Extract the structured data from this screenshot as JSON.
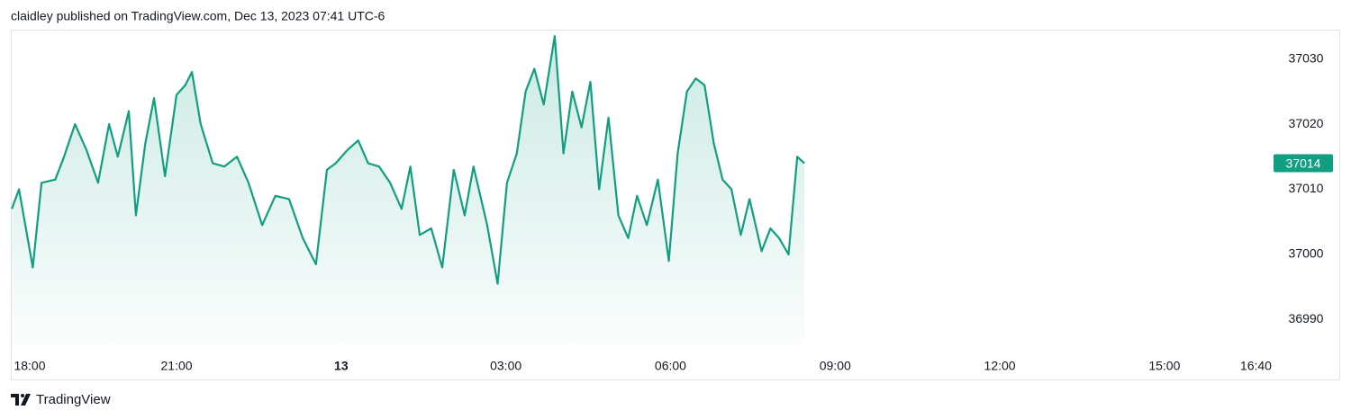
{
  "chart_data": {
    "type": "area",
    "title": "claidley published on TradingView.com, Dec 13, 2023 07:41 UTC-6",
    "brand": "TradingView",
    "color": "#129e80",
    "last_value": 37014,
    "x": [
      18.0,
      18.13,
      18.38,
      18.54,
      18.79,
      18.95,
      19.15,
      19.36,
      19.57,
      19.77,
      19.93,
      20.13,
      20.26,
      20.43,
      20.59,
      20.79,
      21.0,
      21.16,
      21.28,
      21.44,
      21.66,
      21.87,
      22.1,
      22.31,
      22.56,
      22.8,
      23.05,
      23.3,
      23.54,
      23.74,
      23.9,
      24.11,
      24.31,
      24.49,
      24.69,
      24.89,
      25.1,
      25.26,
      25.43,
      25.64,
      25.84,
      26.05,
      26.25,
      26.41,
      26.66,
      26.85,
      27.02,
      27.2,
      27.36,
      27.52,
      27.69,
      27.89,
      28.05,
      28.21,
      28.38,
      28.54,
      28.7,
      28.87,
      29.05,
      29.23,
      29.39,
      29.57,
      29.77,
      29.97,
      30.13,
      30.3,
      30.46,
      30.62,
      30.79,
      30.95,
      31.11,
      31.28,
      31.44,
      31.66,
      31.82,
      31.98,
      32.15,
      32.31,
      32.44
    ],
    "values": [
      37007,
      37010,
      36998,
      37011,
      37011.5,
      37015,
      37020,
      37016,
      37011,
      37020,
      37015,
      37022,
      37006,
      37017,
      37024,
      37012,
      37024.5,
      37026,
      37028,
      37020,
      37014,
      37013.5,
      37015,
      37011,
      37004.5,
      37009,
      37008.5,
      37002.5,
      36998.5,
      37013,
      37014,
      37016,
      37017.5,
      37014,
      37013.5,
      37011,
      37007,
      37013.5,
      37003,
      37004,
      36998,
      37013,
      37006,
      37013.5,
      37004.5,
      36995.5,
      37011,
      37015.5,
      37025,
      37028.5,
      37023,
      37033.5,
      37015.5,
      37025,
      37019.5,
      37026.5,
      37010,
      37021,
      37006,
      37002.5,
      37009,
      37004.5,
      37011.5,
      36999,
      37015.5,
      37025,
      37027,
      37026,
      37017,
      37011.5,
      37010,
      37003,
      37008.5,
      37000.5,
      37004,
      37002.5,
      37000,
      37015,
      37014
    ],
    "xlim": [
      17.98,
      40.84
    ],
    "xticks": [
      {
        "value": 18,
        "label": "18:00"
      },
      {
        "value": 21,
        "label": "21:00"
      },
      {
        "value": 24,
        "label": "13",
        "bold": true
      },
      {
        "value": 27,
        "label": "03:00"
      },
      {
        "value": 30,
        "label": "06:00"
      },
      {
        "value": 33,
        "label": "09:00"
      },
      {
        "value": 36,
        "label": "12:00"
      },
      {
        "value": 39,
        "label": "15:00"
      },
      {
        "value": 40.667,
        "label": "16:40"
      }
    ],
    "ylim": [
      36986.2,
      37034.5
    ],
    "yticks": [
      36990,
      37000,
      37010,
      37020,
      37030
    ],
    "grid": false
  }
}
